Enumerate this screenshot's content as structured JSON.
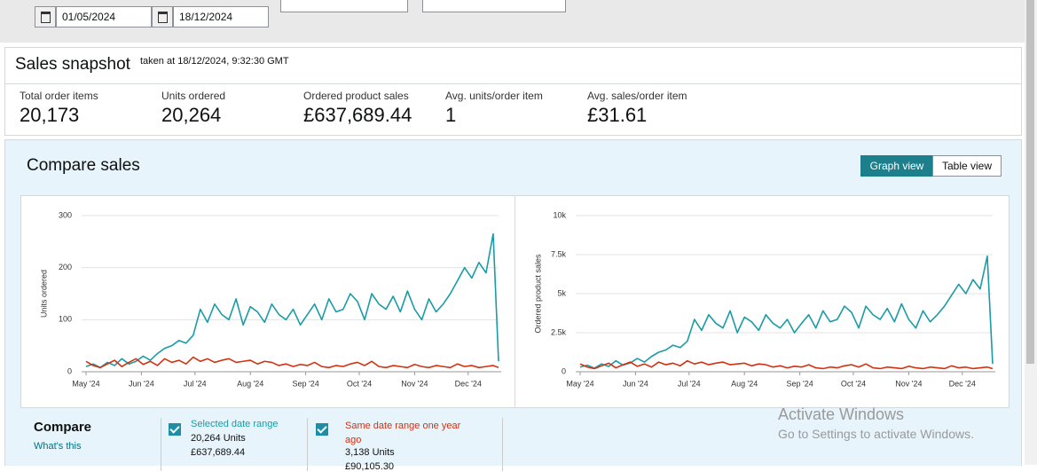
{
  "filters": {
    "start_date": "01/05/2024",
    "end_date": "18/12/2024"
  },
  "snapshot": {
    "title": "Sales snapshot",
    "taken_at": "taken at 18/12/2024, 9:32:30 GMT",
    "metrics": [
      {
        "label": "Total order items",
        "value": "20,173"
      },
      {
        "label": "Units ordered",
        "value": "20,264"
      },
      {
        "label": "Ordered product sales",
        "value": "£637,689.44"
      },
      {
        "label": "Avg. units/order item",
        "value": "1"
      },
      {
        "label": "Avg. sales/order item",
        "value": "£31.61"
      }
    ]
  },
  "compare_sales": {
    "title": "Compare sales",
    "views": [
      "Graph view",
      "Table view"
    ]
  },
  "chart_data": [
    {
      "type": "line",
      "y_label": "Units ordered",
      "x": [
        0,
        4,
        8,
        12,
        16,
        20,
        24,
        28,
        32,
        36,
        40,
        44,
        48,
        52,
        56,
        60,
        64,
        68,
        72,
        76,
        80,
        84,
        88,
        92,
        96,
        100,
        104,
        108,
        112,
        116,
        120,
        124,
        128,
        132,
        136,
        140,
        144,
        148,
        152,
        156,
        160,
        164,
        168,
        172,
        176,
        180,
        184,
        188,
        192,
        196,
        200,
        204,
        208,
        212,
        216,
        220,
        224,
        228,
        231
      ],
      "xlim": [
        0,
        231
      ],
      "xticks": [
        {
          "value": 0,
          "label": "May '24"
        },
        {
          "value": 31,
          "label": "Jun '24"
        },
        {
          "value": 61,
          "label": "Jul '24"
        },
        {
          "value": 92,
          "label": "Aug '24"
        },
        {
          "value": 123,
          "label": "Sep '24"
        },
        {
          "value": 153,
          "label": "Oct '24"
        },
        {
          "value": 184,
          "label": "Nov '24"
        },
        {
          "value": 214,
          "label": "Dec '24"
        }
      ],
      "ylim": [
        0,
        300
      ],
      "yticks": [
        0,
        100,
        200,
        300
      ],
      "grid": true,
      "series": [
        {
          "name": "Selected date range",
          "color": "#1a9ba6",
          "values": [
            10,
            15,
            8,
            18,
            12,
            25,
            15,
            20,
            30,
            22,
            35,
            45,
            50,
            60,
            55,
            70,
            120,
            95,
            130,
            110,
            100,
            140,
            90,
            125,
            115,
            95,
            130,
            110,
            100,
            120,
            90,
            110,
            130,
            100,
            140,
            115,
            120,
            150,
            135,
            100,
            150,
            130,
            120,
            145,
            115,
            155,
            120,
            100,
            140,
            115,
            130,
            150,
            175,
            200,
            180,
            210,
            190,
            265,
            20
          ]
        },
        {
          "name": "Same date range one year ago",
          "color": "#d13212",
          "values": [
            20,
            12,
            8,
            15,
            22,
            10,
            18,
            25,
            14,
            20,
            12,
            25,
            18,
            22,
            15,
            28,
            20,
            25,
            18,
            22,
            25,
            18,
            20,
            22,
            15,
            20,
            18,
            12,
            15,
            10,
            14,
            12,
            18,
            10,
            8,
            12,
            10,
            15,
            18,
            12,
            20,
            10,
            8,
            12,
            10,
            8,
            14,
            10,
            8,
            12,
            10,
            8,
            15,
            10,
            12,
            8,
            10,
            12,
            8
          ]
        }
      ]
    },
    {
      "type": "line",
      "y_label": "Ordered product sales",
      "x": [
        0,
        4,
        8,
        12,
        16,
        20,
        24,
        28,
        32,
        36,
        40,
        44,
        48,
        52,
        56,
        60,
        64,
        68,
        72,
        76,
        80,
        84,
        88,
        92,
        96,
        100,
        104,
        108,
        112,
        116,
        120,
        124,
        128,
        132,
        136,
        140,
        144,
        148,
        152,
        156,
        160,
        164,
        168,
        172,
        176,
        180,
        184,
        188,
        192,
        196,
        200,
        204,
        208,
        212,
        216,
        220,
        224,
        228,
        231
      ],
      "xlim": [
        0,
        231
      ],
      "xticks": [
        {
          "value": 0,
          "label": "May '24"
        },
        {
          "value": 31,
          "label": "Jun '24"
        },
        {
          "value": 61,
          "label": "Jul '24"
        },
        {
          "value": 92,
          "label": "Aug '24"
        },
        {
          "value": 123,
          "label": "Sep '24"
        },
        {
          "value": 153,
          "label": "Oct '24"
        },
        {
          "value": 184,
          "label": "Nov '24"
        },
        {
          "value": 214,
          "label": "Dec '24"
        }
      ],
      "ylim": [
        0,
        10000
      ],
      "yticks": [
        0,
        {
          "value": 2500,
          "label": "2.5k"
        },
        {
          "value": 5000,
          "label": "5k"
        },
        {
          "value": 7500,
          "label": "7.5k"
        },
        {
          "value": 10000,
          "label": "10k"
        }
      ],
      "grid": true,
      "series": [
        {
          "color": "#1a9ba6",
          "values": [
            300,
            420,
            230,
            500,
            340,
            700,
            420,
            560,
            850,
            620,
            980,
            1250,
            1400,
            1700,
            1550,
            1950,
            3350,
            2650,
            3650,
            3100,
            2800,
            3900,
            2500,
            3500,
            3200,
            2650,
            3650,
            3100,
            2800,
            3350,
            2500,
            3100,
            3650,
            2800,
            3900,
            3200,
            3350,
            4200,
            3800,
            2800,
            4200,
            3650,
            3350,
            4050,
            3200,
            4350,
            3350,
            2800,
            3900,
            3200,
            3650,
            4200,
            4900,
            5600,
            5000,
            5900,
            5300,
            7400,
            500
          ]
        },
        {
          "color": "#d13212",
          "values": [
            500,
            300,
            200,
            380,
            550,
            250,
            450,
            620,
            350,
            500,
            300,
            620,
            450,
            550,
            380,
            700,
            500,
            620,
            450,
            550,
            620,
            450,
            500,
            550,
            380,
            500,
            450,
            300,
            380,
            250,
            350,
            300,
            450,
            250,
            200,
            300,
            250,
            380,
            450,
            300,
            500,
            250,
            200,
            300,
            250,
            200,
            350,
            250,
            200,
            300,
            250,
            200,
            380,
            250,
            300,
            200,
            250,
            300,
            200
          ]
        }
      ]
    }
  ],
  "compare": {
    "title": "Compare",
    "help": "What's this",
    "ranges": [
      {
        "units": "20,264 Units",
        "sales": "£637,689.44"
      },
      {
        "units": "3,138 Units",
        "sales": "£90,105.30"
      }
    ]
  },
  "watermark": {
    "title": "Activate Windows",
    "text": "Go to Settings to activate Windows."
  }
}
